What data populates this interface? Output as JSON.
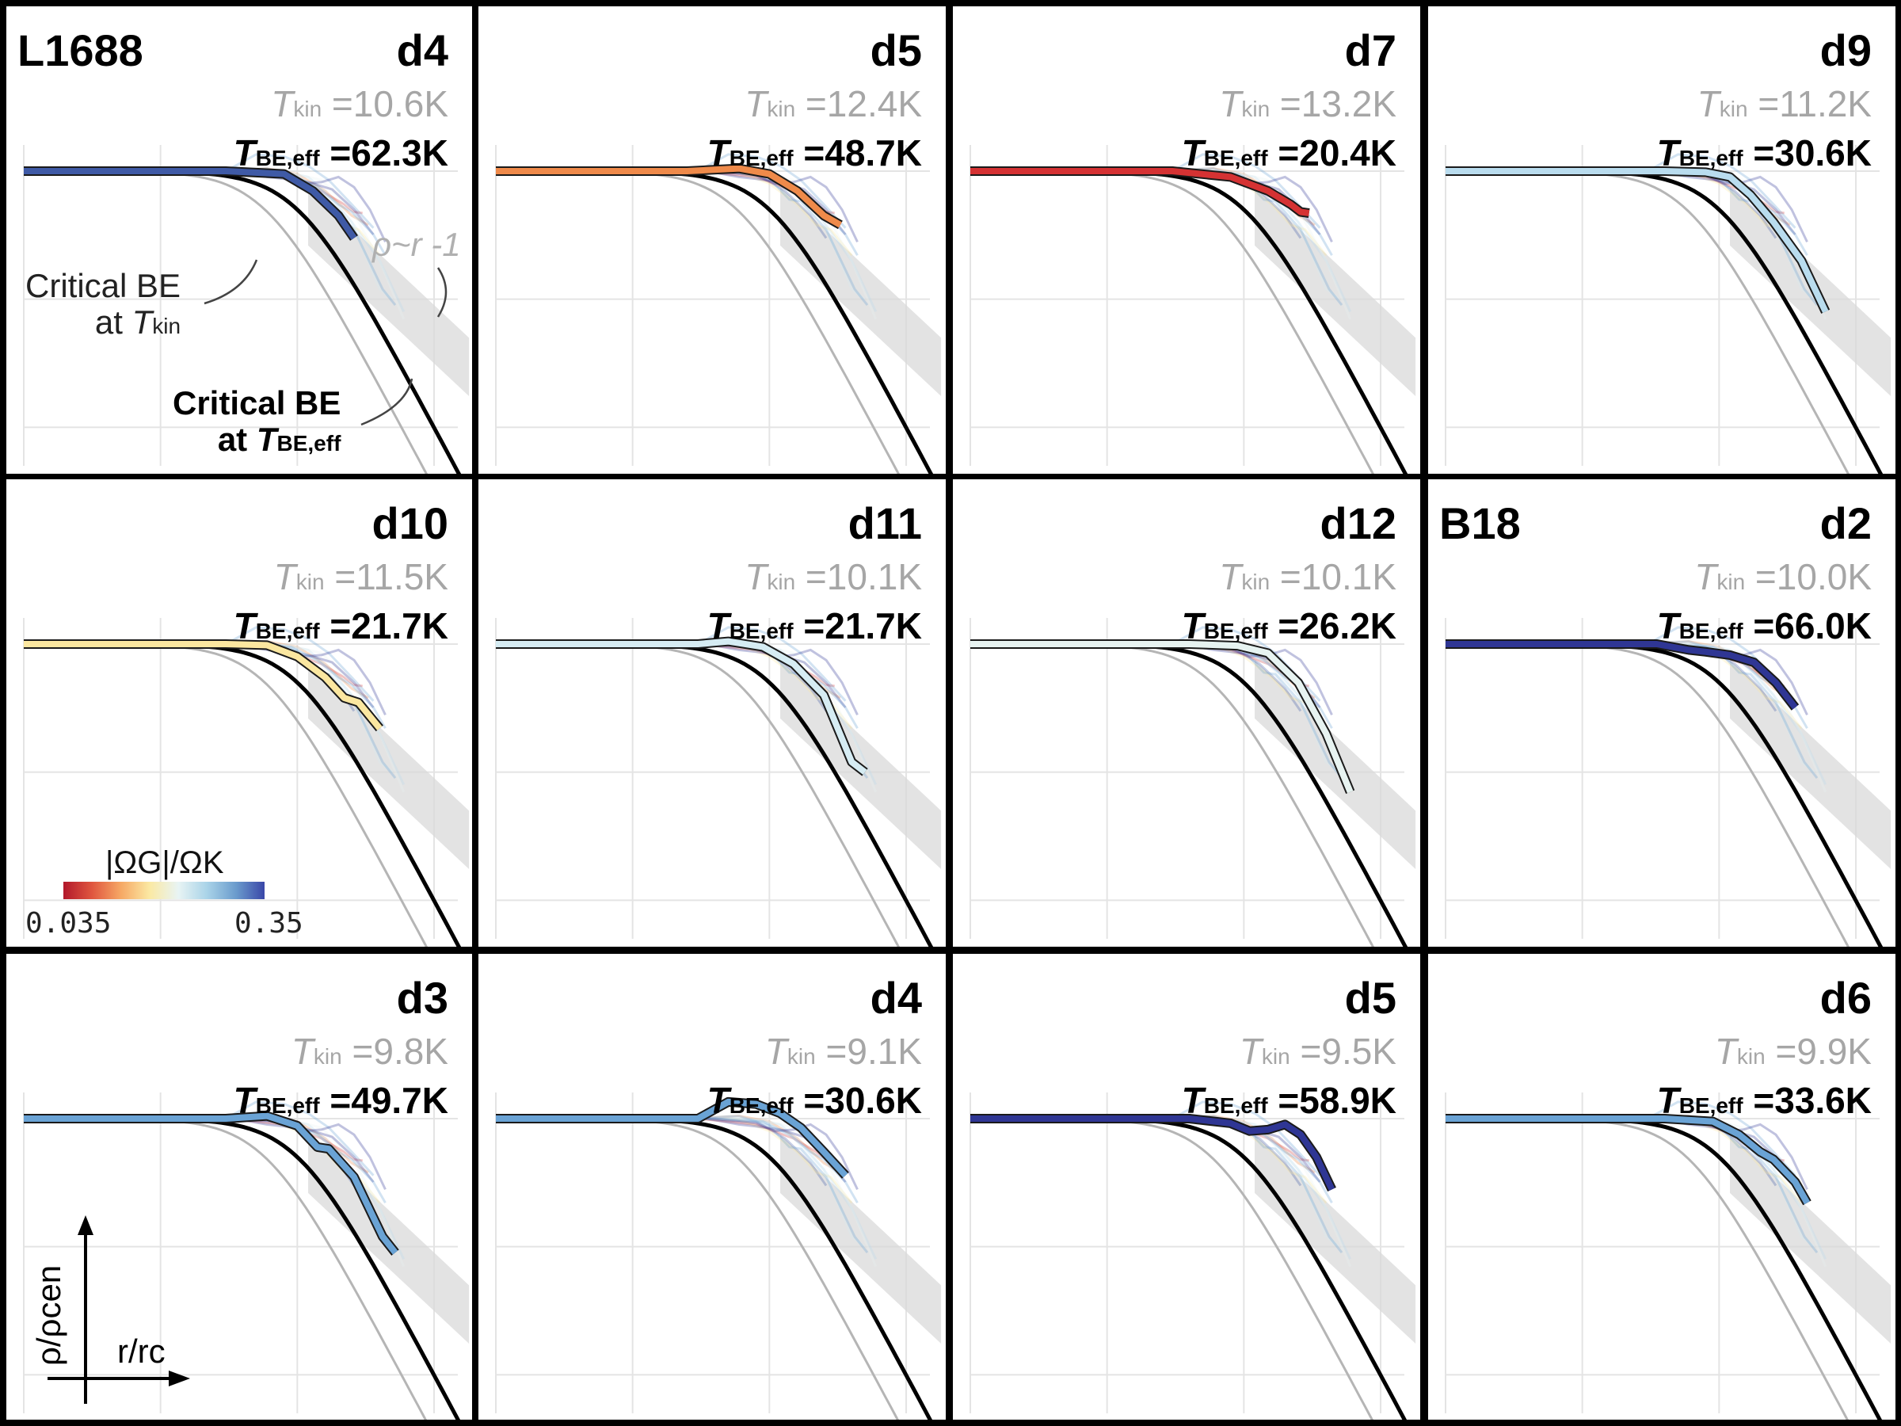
{
  "colors": {
    "background": "#000000",
    "panel": "#ffffff",
    "be_critical": "#000000",
    "be_kin": "#b5b5b5",
    "band": "#d9d9d9",
    "grid": "#e4e4e4",
    "tkin_text": "#a6a6a6"
  },
  "colorbar": {
    "label": "|ΩG|/ΩK",
    "min_label": "0.035",
    "max_label": "0.35"
  },
  "annotations": {
    "critical_kin_line1": "Critical BE",
    "critical_kin_line2": "at Tkin",
    "critical_eff_line1": "Critical BE",
    "critical_eff_line2": "at TBE,eff",
    "power_law": "ρ~r -1"
  },
  "axes": {
    "xlabel": "r/rc",
    "ylabel": "ρ/ρcen"
  },
  "chart_data": {
    "type": "line",
    "title": "",
    "xlabel": "r/rc",
    "ylabel": "ρ/ρcen",
    "xscale": "log",
    "yscale": "log",
    "panels": [
      {
        "region": "L1688",
        "name": "d4",
        "tkin": "10.6K",
        "tbe_eff": "62.3K",
        "ratio": 0.35,
        "color": "#3f5aa6",
        "profile": [
          [
            0.01,
            1.0
          ],
          [
            0.3,
            1.0
          ],
          [
            0.8,
            0.95
          ],
          [
            1.3,
            0.7
          ],
          [
            2.0,
            0.45
          ],
          [
            2.6,
            0.3
          ]
        ]
      },
      {
        "region": "",
        "name": "d5",
        "tkin": "12.4K",
        "tbe_eff": "48.7K",
        "ratio": 0.045,
        "color": "#ef8a4a",
        "profile": [
          [
            0.01,
            1.0
          ],
          [
            0.25,
            1.0
          ],
          [
            0.6,
            1.05
          ],
          [
            1.0,
            0.95
          ],
          [
            1.6,
            0.7
          ],
          [
            2.5,
            0.45
          ],
          [
            3.3,
            0.38
          ]
        ]
      },
      {
        "region": "",
        "name": "d7",
        "tkin": "13.2K",
        "tbe_eff": "20.4K",
        "ratio": 0.035,
        "color": "#d53233",
        "profile": [
          [
            0.01,
            1.0
          ],
          [
            0.3,
            1.0
          ],
          [
            0.8,
            0.9
          ],
          [
            1.5,
            0.7
          ],
          [
            2.2,
            0.55
          ],
          [
            2.6,
            0.48
          ],
          [
            3.0,
            0.47
          ]
        ]
      },
      {
        "region": "",
        "name": "d9",
        "tkin": "11.2K",
        "tbe_eff": "30.6K",
        "ratio": 0.2,
        "color": "#b9dcee",
        "profile": [
          [
            0.01,
            1.0
          ],
          [
            0.4,
            1.0
          ],
          [
            0.8,
            0.98
          ],
          [
            1.2,
            0.9
          ],
          [
            1.7,
            0.65
          ],
          [
            2.5,
            0.4
          ],
          [
            4.0,
            0.2
          ],
          [
            6.0,
            0.08
          ]
        ]
      },
      {
        "region": "",
        "name": "d10",
        "tkin": "11.5K",
        "tbe_eff": "21.7K",
        "ratio": 0.07,
        "color": "#fbe7a0",
        "profile": [
          [
            0.01,
            1.0
          ],
          [
            0.3,
            1.0
          ],
          [
            0.6,
            0.98
          ],
          [
            1.0,
            0.8
          ],
          [
            1.6,
            0.55
          ],
          [
            2.2,
            0.38
          ],
          [
            2.8,
            0.35
          ],
          [
            4.0,
            0.22
          ]
        ]
      },
      {
        "region": "",
        "name": "d11",
        "tkin": "10.1K",
        "tbe_eff": "21.7K",
        "ratio": 0.16,
        "color": "#d6ecf3",
        "profile": [
          [
            0.01,
            1.0
          ],
          [
            0.3,
            1.0
          ],
          [
            0.5,
            1.05
          ],
          [
            0.9,
            0.95
          ],
          [
            1.5,
            0.7
          ],
          [
            2.5,
            0.4
          ],
          [
            4.0,
            0.12
          ],
          [
            5.0,
            0.1
          ]
        ]
      },
      {
        "region": "",
        "name": "d12",
        "tkin": "10.1K",
        "tbe_eff": "26.2K",
        "ratio": 0.13,
        "color": "#e7f3f1",
        "profile": [
          [
            0.01,
            1.0
          ],
          [
            0.4,
            1.0
          ],
          [
            0.9,
            0.97
          ],
          [
            1.5,
            0.85
          ],
          [
            2.5,
            0.5
          ],
          [
            4.0,
            0.2
          ],
          [
            6.0,
            0.07
          ]
        ]
      },
      {
        "region": "B18",
        "name": "d2",
        "tkin": "10.0K",
        "tbe_eff": "66.0K",
        "ratio": 0.35,
        "color": "#2f3694",
        "profile": [
          [
            0.01,
            1.0
          ],
          [
            0.35,
            1.0
          ],
          [
            0.6,
            0.9
          ],
          [
            0.8,
            0.87
          ],
          [
            1.2,
            0.82
          ],
          [
            1.8,
            0.72
          ],
          [
            2.6,
            0.5
          ],
          [
            3.6,
            0.32
          ]
        ]
      },
      {
        "region": "",
        "name": "d3",
        "tkin": "9.8K",
        "tbe_eff": "49.7K",
        "ratio": 0.26,
        "color": "#6aa3d5",
        "profile": [
          [
            0.01,
            1.0
          ],
          [
            0.3,
            1.0
          ],
          [
            0.6,
            1.05
          ],
          [
            1.0,
            0.88
          ],
          [
            1.4,
            0.6
          ],
          [
            1.7,
            0.58
          ],
          [
            2.6,
            0.35
          ],
          [
            4.2,
            0.12
          ],
          [
            5.2,
            0.09
          ]
        ]
      },
      {
        "region": "",
        "name": "d4",
        "tkin": "9.1K",
        "tbe_eff": "30.6K",
        "ratio": 0.24,
        "color": "#6aa3d5",
        "profile": [
          [
            0.01,
            1.0
          ],
          [
            0.3,
            1.0
          ],
          [
            0.5,
            1.35
          ],
          [
            0.8,
            1.3
          ],
          [
            1.2,
            1.1
          ],
          [
            1.7,
            0.85
          ],
          [
            2.5,
            0.55
          ],
          [
            3.6,
            0.36
          ]
        ]
      },
      {
        "region": "",
        "name": "d5",
        "tkin": "9.5K",
        "tbe_eff": "58.9K",
        "ratio": 0.35,
        "color": "#2f3694",
        "profile": [
          [
            0.01,
            1.0
          ],
          [
            0.4,
            1.0
          ],
          [
            0.8,
            0.92
          ],
          [
            1.1,
            0.8
          ],
          [
            1.5,
            0.82
          ],
          [
            2.0,
            0.9
          ],
          [
            2.6,
            0.75
          ],
          [
            3.4,
            0.5
          ],
          [
            4.4,
            0.28
          ]
        ]
      },
      {
        "region": "",
        "name": "d6",
        "tkin": "9.9K",
        "tbe_eff": "33.6K",
        "ratio": 0.24,
        "color": "#6aa3d5",
        "profile": [
          [
            0.01,
            1.0
          ],
          [
            0.4,
            1.0
          ],
          [
            0.9,
            0.95
          ],
          [
            1.4,
            0.75
          ],
          [
            2.0,
            0.55
          ],
          [
            2.5,
            0.48
          ],
          [
            3.6,
            0.32
          ],
          [
            4.4,
            0.22
          ]
        ]
      }
    ]
  }
}
